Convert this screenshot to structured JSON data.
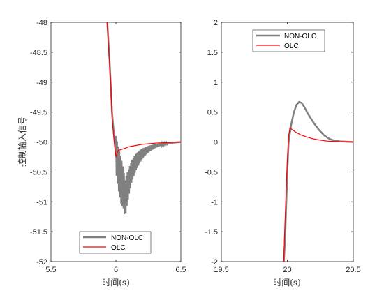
{
  "chart_data": [
    {
      "type": "line",
      "title": "",
      "xlabel": "时间(s)",
      "ylabel": "控制输入信号",
      "xlim": [
        5.5,
        6.5
      ],
      "ylim": [
        -52,
        -48
      ],
      "xticks": [
        "5.5",
        "6",
        "6.5"
      ],
      "yticks": [
        "-48",
        "-48.5",
        "-49",
        "-49.5",
        "-50",
        "-50.5",
        "-51",
        "-51.5",
        "-52"
      ],
      "legend_position": "bottom-center",
      "series": [
        {
          "name": "NON-OLC",
          "color": "#808080",
          "points": [
            [
              5.92,
              -47.5
            ],
            [
              5.95,
              -48.6
            ],
            [
              5.97,
              -49.5
            ],
            [
              5.99,
              -50.0
            ],
            [
              6.0,
              -50.2
            ],
            [
              6.02,
              -50.45
            ],
            [
              6.04,
              -50.65
            ],
            [
              6.06,
              -50.8
            ],
            [
              6.07,
              -50.95
            ],
            [
              6.09,
              -50.75
            ],
            [
              6.12,
              -50.5
            ],
            [
              6.15,
              -50.35
            ],
            [
              6.2,
              -50.2
            ],
            [
              6.25,
              -50.12
            ],
            [
              6.3,
              -50.07
            ],
            [
              6.35,
              -50.04
            ],
            [
              6.4,
              -50.02
            ],
            [
              6.45,
              -50.01
            ],
            [
              6.5,
              -50.0
            ]
          ],
          "jitter_band": [
            [
              6.0,
              0.3
            ],
            [
              6.02,
              0.35
            ],
            [
              6.04,
              0.38
            ],
            [
              6.06,
              0.32
            ],
            [
              6.08,
              0.28
            ],
            [
              6.1,
              0.22
            ],
            [
              6.13,
              0.17
            ],
            [
              6.17,
              0.12
            ],
            [
              6.22,
              0.07
            ],
            [
              6.28,
              0.04
            ],
            [
              6.34,
              0.02
            ],
            [
              6.4,
              0.01
            ]
          ]
        },
        {
          "name": "OLC",
          "color": "#ff0000",
          "points": [
            [
              5.92,
              -47.5
            ],
            [
              5.94,
              -48.3
            ],
            [
              5.96,
              -49.0
            ],
            [
              5.97,
              -49.6
            ],
            [
              5.985,
              -49.95
            ],
            [
              6.0,
              -50.25
            ],
            [
              6.01,
              -50.18
            ],
            [
              6.02,
              -50.14
            ],
            [
              6.05,
              -50.12
            ],
            [
              6.1,
              -50.08
            ],
            [
              6.15,
              -50.06
            ],
            [
              6.2,
              -50.04
            ],
            [
              6.3,
              -50.02
            ],
            [
              6.4,
              -50.01
            ],
            [
              6.5,
              -50.0
            ]
          ]
        }
      ]
    },
    {
      "type": "line",
      "title": "",
      "xlabel": "时间(s)",
      "ylabel": "",
      "xlim": [
        19.5,
        20.5
      ],
      "ylim": [
        -2,
        2
      ],
      "xticks": [
        "19.5",
        "20",
        "20.5"
      ],
      "yticks": [
        "2",
        "1.5",
        "1",
        "0.5",
        "0",
        "-0.5",
        "-1",
        "-1.5",
        "-2"
      ],
      "legend_position": "top-center",
      "series": [
        {
          "name": "NON-OLC",
          "color": "#808080",
          "points": [
            [
              19.97,
              -2.2
            ],
            [
              19.985,
              -1.5
            ],
            [
              20.0,
              -0.5
            ],
            [
              20.01,
              0.0
            ],
            [
              20.03,
              0.3
            ],
            [
              20.05,
              0.5
            ],
            [
              20.07,
              0.62
            ],
            [
              20.09,
              0.67
            ],
            [
              20.11,
              0.65
            ],
            [
              20.13,
              0.58
            ],
            [
              20.16,
              0.46
            ],
            [
              20.2,
              0.32
            ],
            [
              20.24,
              0.2
            ],
            [
              20.28,
              0.11
            ],
            [
              20.32,
              0.05
            ],
            [
              20.36,
              0.02
            ],
            [
              20.4,
              0.01
            ],
            [
              20.5,
              0.0
            ]
          ]
        },
        {
          "name": "OLC",
          "color": "#ff0000",
          "points": [
            [
              19.97,
              -2.2
            ],
            [
              19.98,
              -1.5
            ],
            [
              19.99,
              -0.9
            ],
            [
              20.0,
              -0.3
            ],
            [
              20.01,
              0.1
            ],
            [
              20.02,
              0.24
            ],
            [
              20.04,
              0.2
            ],
            [
              20.06,
              0.17
            ],
            [
              20.1,
              0.12
            ],
            [
              20.15,
              0.08
            ],
            [
              20.2,
              0.05
            ],
            [
              20.25,
              0.03
            ],
            [
              20.3,
              0.015
            ],
            [
              20.4,
              0.005
            ],
            [
              20.5,
              0.0
            ]
          ]
        }
      ]
    }
  ]
}
